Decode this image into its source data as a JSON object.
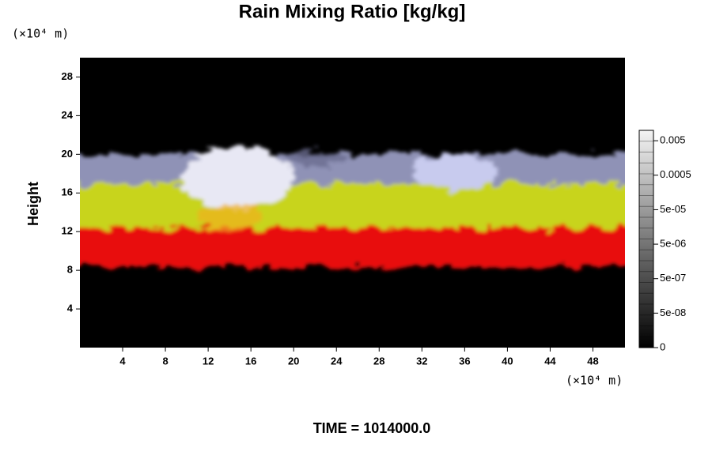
{
  "chart_data": {
    "type": "volume-render",
    "title": "Rain Mixing Ratio [kg/kg]",
    "y_label": "Height",
    "y_unit": "(×10⁴ m)",
    "x_unit": "(×10⁴ m)",
    "annotation": "TIME = 1014000.0",
    "xlim": [
      0,
      51
    ],
    "xticks": [
      4,
      8,
      12,
      16,
      20,
      24,
      28,
      32,
      36,
      40,
      44,
      48
    ],
    "ylim": [
      0,
      30
    ],
    "yticks": [
      4,
      8,
      12,
      16,
      20,
      24,
      28
    ],
    "colorbar": {
      "scale": "log",
      "lim": [
        5e-09,
        0.01
      ],
      "ticks": [
        0,
        {
          "value": 5e-08,
          "label": "5e-08"
        },
        {
          "value": 5e-07,
          "label": "5e-07"
        },
        {
          "value": 5e-06,
          "label": "5e-06"
        },
        {
          "value": 5e-05,
          "label": "5e-05"
        },
        0.0005,
        0.005
      ]
    }
  }
}
